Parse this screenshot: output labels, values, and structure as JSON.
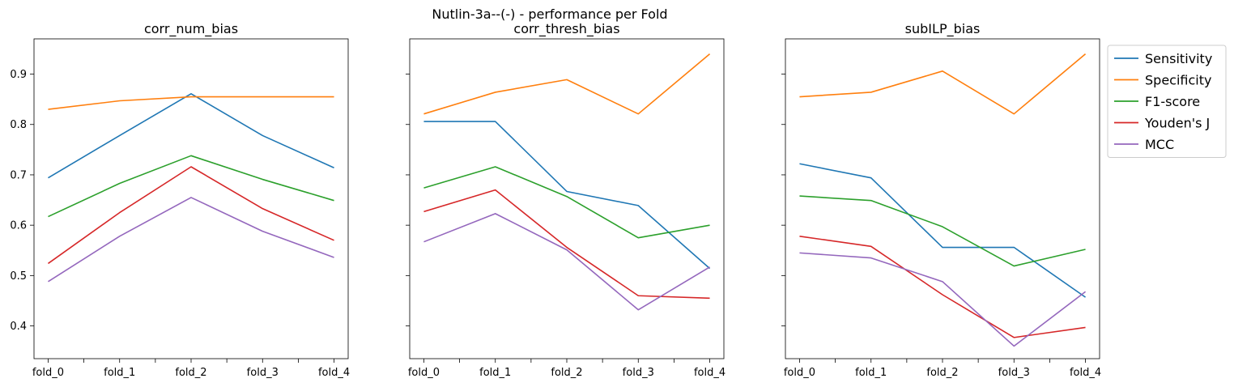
{
  "chart_data": {
    "type": "line",
    "title": "Nutlin-3a--(-) - performance per Fold",
    "categories": [
      "fold_0",
      "fold_1",
      "fold_2",
      "fold_3",
      "fold_4"
    ],
    "ylim": [
      0.335,
      0.97
    ],
    "yticks": [
      0.4,
      0.5,
      0.6,
      0.7,
      0.8,
      0.9
    ],
    "sharey": true,
    "grid": false,
    "legend_position": "outside-right",
    "legend": [
      "Sensitivity",
      "Specificity",
      "F1-score",
      "Youden's J",
      "MCC"
    ],
    "colors": {
      "Sensitivity": "#1f77b4",
      "Specificity": "#ff7f0e",
      "F1-score": "#2ca02c",
      "Youden's J": "#d62728",
      "MCC": "#9467bd"
    },
    "panels": [
      {
        "title": "corr_num_bias",
        "series": [
          {
            "name": "Sensitivity",
            "values": [
              0.694,
              0.778,
              0.861,
              0.778,
              0.714
            ]
          },
          {
            "name": "Specificity",
            "values": [
              0.83,
              0.847,
              0.855,
              0.855,
              0.855
            ]
          },
          {
            "name": "F1-score",
            "values": [
              0.617,
              0.683,
              0.738,
              0.691,
              0.649
            ]
          },
          {
            "name": "Youden's J",
            "values": [
              0.524,
              0.625,
              0.716,
              0.633,
              0.57
            ]
          },
          {
            "name": "MCC",
            "values": [
              0.488,
              0.578,
              0.655,
              0.588,
              0.536
            ]
          }
        ]
      },
      {
        "title": "corr_thresh_bias",
        "series": [
          {
            "name": "Sensitivity",
            "values": [
              0.806,
              0.806,
              0.667,
              0.639,
              0.514
            ]
          },
          {
            "name": "Specificity",
            "values": [
              0.821,
              0.864,
              0.889,
              0.821,
              0.94
            ]
          },
          {
            "name": "F1-score",
            "values": [
              0.674,
              0.716,
              0.657,
              0.575,
              0.6
            ]
          },
          {
            "name": "Youden's J",
            "values": [
              0.627,
              0.67,
              0.556,
              0.46,
              0.455
            ]
          },
          {
            "name": "MCC",
            "values": [
              0.567,
              0.623,
              0.551,
              0.432,
              0.517
            ]
          }
        ]
      },
      {
        "title": "subILP_bias",
        "series": [
          {
            "name": "Sensitivity",
            "values": [
              0.722,
              0.694,
              0.556,
              0.556,
              0.457
            ]
          },
          {
            "name": "Specificity",
            "values": [
              0.855,
              0.864,
              0.906,
              0.821,
              0.94
            ]
          },
          {
            "name": "F1-score",
            "values": [
              0.658,
              0.649,
              0.597,
              0.519,
              0.552
            ]
          },
          {
            "name": "Youden's J",
            "values": [
              0.578,
              0.558,
              0.462,
              0.377,
              0.397
            ]
          },
          {
            "name": "MCC",
            "values": [
              0.545,
              0.535,
              0.488,
              0.36,
              0.468
            ]
          }
        ]
      }
    ]
  }
}
